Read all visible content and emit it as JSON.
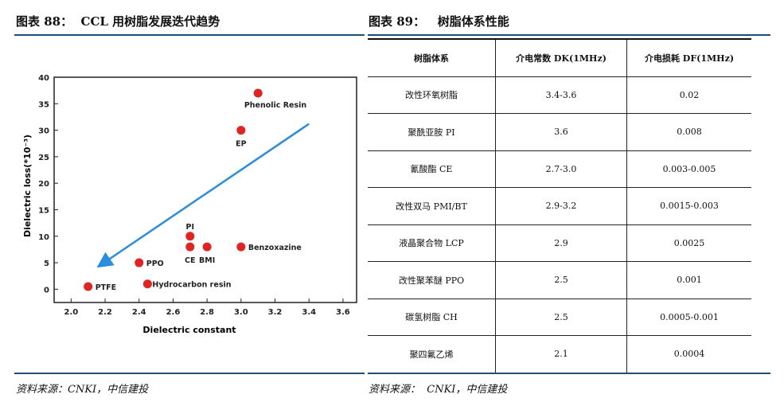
{
  "left": {
    "title": "图表 88：  CCL 用树脂发展迭代趋势",
    "source": "资料来源：CNKI，中信建投"
  },
  "right": {
    "title": "图表 89：   树脂体系性能",
    "source": "资料来源：  CNKI，中信建投"
  },
  "table": {
    "headers": [
      "树脂体系",
      "介电常数 DK(1MHz)",
      "介电损耗 DF(1MHz)"
    ],
    "rows": [
      [
        "改性环氧树脂",
        "3.4-3.6",
        "0.02"
      ],
      [
        "聚酰亚胺 PI",
        "3.6",
        "0.008"
      ],
      [
        "氰酸酯 CE",
        "2.7-3.0",
        "0.003-0.005"
      ],
      [
        "改性双马 PMI/BT",
        "2.9-3.2",
        "0.0015-0.003"
      ],
      [
        "液晶聚合物 LCP",
        "2.9",
        "0.0025"
      ],
      [
        "改性聚苯醚 PPO",
        "2.5",
        "0.001"
      ],
      [
        "碳氢树脂 CH",
        "2.5",
        "0.0005-0.001"
      ],
      [
        "聚四氟乙烯",
        "2.1",
        "0.0004"
      ]
    ]
  },
  "chart_data": {
    "type": "scatter",
    "xlabel": "Dielectric constant",
    "ylabel": "Dielectric loss(*10⁻³)",
    "xlim": [
      1.9,
      3.68
    ],
    "ylim": [
      -2.5,
      40
    ],
    "xticks": [
      "2.0",
      "2.2",
      "2.4",
      "2.6",
      "2.8",
      "3.0",
      "3.2",
      "3.4",
      "3.6"
    ],
    "yticks": [
      "0",
      "5",
      "10",
      "15",
      "20",
      "25",
      "30",
      "35",
      "40"
    ],
    "point_color": "#e32222",
    "arrow_color": "#2a8de0",
    "points": [
      {
        "label": "Phenolic Resin",
        "x": 3.1,
        "y": 37
      },
      {
        "label": "EP",
        "x": 3.0,
        "y": 30
      },
      {
        "label": "PI",
        "x": 2.7,
        "y": 10
      },
      {
        "label": "CE",
        "x": 2.7,
        "y": 8
      },
      {
        "label": "BMI",
        "x": 2.8,
        "y": 8
      },
      {
        "label": "Benzoxazine",
        "x": 3.0,
        "y": 8
      },
      {
        "label": "PPO",
        "x": 2.4,
        "y": 5
      },
      {
        "label": "Hydrocarbon resin",
        "x": 2.45,
        "y": 1
      },
      {
        "label": "PTFE",
        "x": 2.1,
        "y": 0.5
      }
    ],
    "arrow": {
      "from": [
        3.4,
        31.2
      ],
      "to": [
        2.17,
        4.5
      ]
    }
  }
}
